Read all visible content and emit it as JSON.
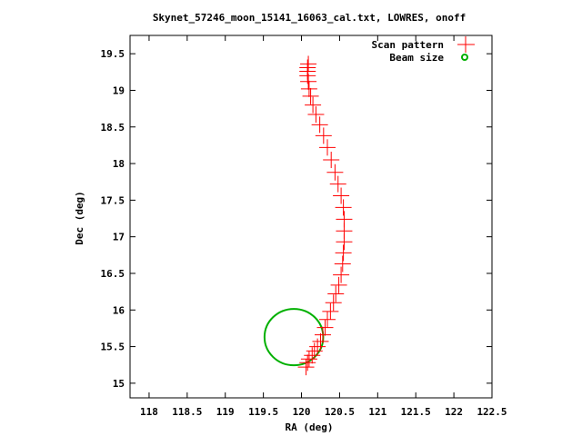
{
  "chart_data": {
    "type": "scatter",
    "title": "Skynet_57246_moon_15141_16063_cal.txt, LOWRES, onoff",
    "xlabel": "RA (deg)",
    "ylabel": "Dec (deg)",
    "xlim": [
      117.75,
      122.5
    ],
    "ylim": [
      14.8,
      19.75
    ],
    "x_ticks": [
      "118",
      "118.5",
      "119",
      "119.5",
      "120",
      "120.5",
      "121",
      "121.5",
      "122",
      "122.5"
    ],
    "y_ticks": [
      "15",
      "15.5",
      "16",
      "16.5",
      "17",
      "17.5",
      "18",
      "18.5",
      "19",
      "19.5"
    ],
    "grid": false,
    "legend_position": "top-right",
    "series": [
      {
        "name": "Scan pattern",
        "color": "#ff0000",
        "marker": "plus",
        "points": [
          [
            120.06,
            15.22
          ],
          [
            120.08,
            15.28
          ],
          [
            120.1,
            15.33
          ],
          [
            120.14,
            15.38
          ],
          [
            120.17,
            15.44
          ],
          [
            120.21,
            15.5
          ],
          [
            120.25,
            15.57
          ],
          [
            120.28,
            15.66
          ],
          [
            120.31,
            15.76
          ],
          [
            120.34,
            15.87
          ],
          [
            120.38,
            15.98
          ],
          [
            120.42,
            16.1
          ],
          [
            120.45,
            16.22
          ],
          [
            120.49,
            16.34
          ],
          [
            120.52,
            16.48
          ],
          [
            120.54,
            16.63
          ],
          [
            120.55,
            16.78
          ],
          [
            120.56,
            16.93
          ],
          [
            120.56,
            17.08
          ],
          [
            120.56,
            17.24
          ],
          [
            120.55,
            17.4
          ],
          [
            120.52,
            17.56
          ],
          [
            120.48,
            17.72
          ],
          [
            120.44,
            17.88
          ],
          [
            120.39,
            18.05
          ],
          [
            120.34,
            18.22
          ],
          [
            120.29,
            18.38
          ],
          [
            120.24,
            18.53
          ],
          [
            120.19,
            18.67
          ],
          [
            120.15,
            18.8
          ],
          [
            120.12,
            18.92
          ],
          [
            120.1,
            19.02
          ],
          [
            120.09,
            19.12
          ],
          [
            120.08,
            19.2
          ],
          [
            120.08,
            19.26
          ],
          [
            120.08,
            19.31
          ],
          [
            120.09,
            19.36
          ]
        ]
      },
      {
        "name": "Beam size",
        "color": "#00b000",
        "marker": "circle",
        "center": [
          119.9,
          15.63
        ],
        "radius": 0.385
      }
    ]
  }
}
